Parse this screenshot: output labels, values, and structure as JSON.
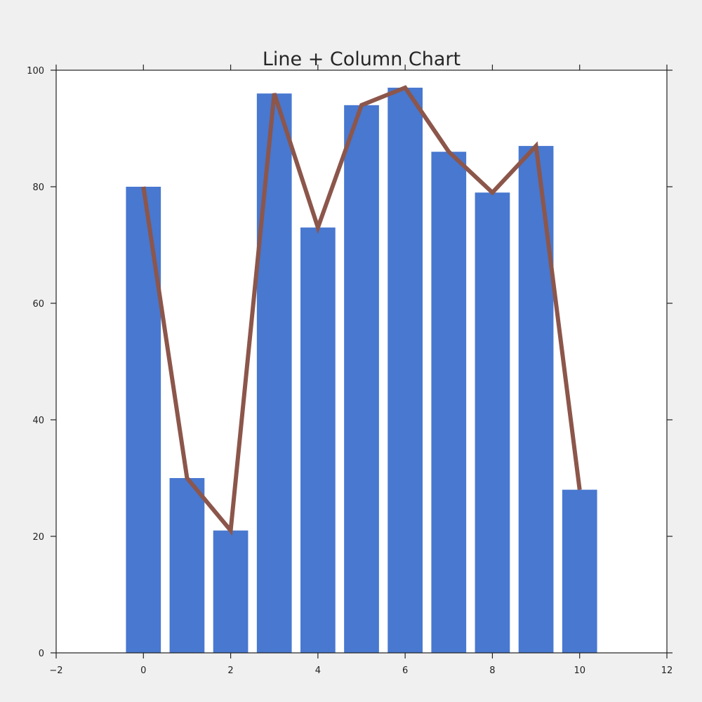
{
  "chart_data": {
    "type": "bar",
    "title": "Line + Column Chart",
    "xlabel": "",
    "ylabel": "",
    "xlim": [
      -2,
      12
    ],
    "ylim": [
      0,
      100
    ],
    "x_ticks": [
      -2,
      0,
      2,
      4,
      6,
      8,
      10,
      12
    ],
    "y_ticks": [
      0,
      20,
      40,
      60,
      80,
      100
    ],
    "x_tick_labels": [
      "−2",
      "0",
      "2",
      "4",
      "6",
      "8",
      "10",
      "12"
    ],
    "y_tick_labels": [
      "0",
      "20",
      "40",
      "60",
      "80",
      "100"
    ],
    "x": [
      0,
      1,
      2,
      3,
      4,
      5,
      6,
      7,
      8,
      9,
      10
    ],
    "series": [
      {
        "type": "bar",
        "color": "#4878d0",
        "values": [
          80,
          30,
          21,
          96,
          73,
          94,
          97,
          86,
          79,
          87,
          28
        ]
      },
      {
        "type": "line",
        "color": "#8c564b",
        "values": [
          80,
          30,
          21,
          96,
          73,
          94,
          97,
          86,
          79,
          87,
          28
        ]
      }
    ],
    "bar_width": 0.8,
    "grid": false,
    "legend": "none"
  },
  "colors": {
    "page_background": "#f0f0f0",
    "plot_background": "#ffffff",
    "axis": "#222222"
  }
}
